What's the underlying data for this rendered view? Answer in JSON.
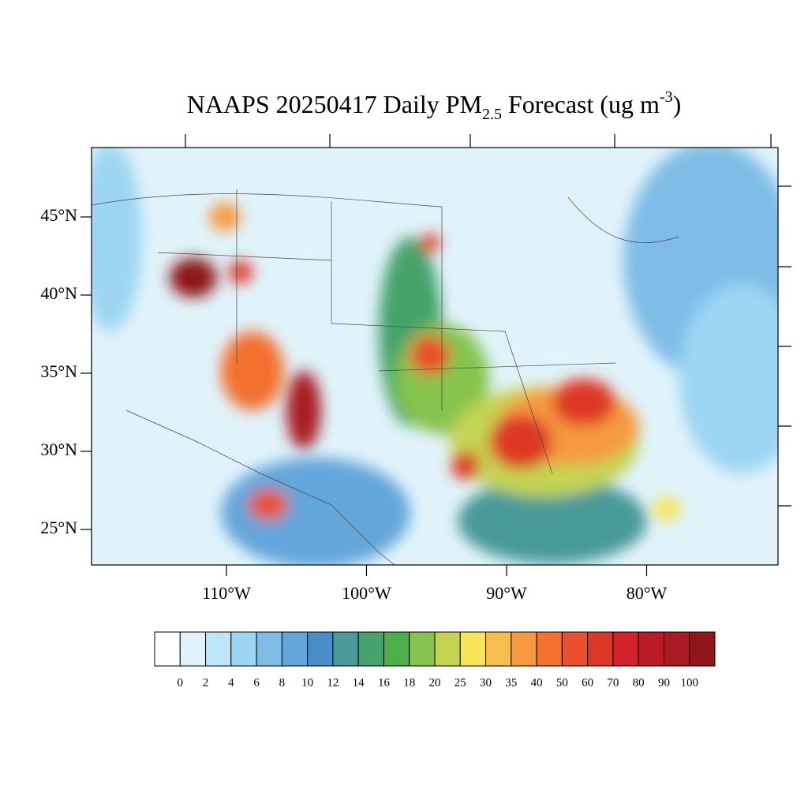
{
  "title": {
    "main": "NAAPS 20250417 Daily PM",
    "sub": "2.5",
    "after": " Forecast (ug m",
    "sup": "-3",
    "end": ")"
  },
  "map": {
    "xlim": [
      -119.63,
      -70.62
    ],
    "ylim": [
      22.73,
      49.44
    ],
    "xticks": [
      {
        "value": -110,
        "label": "110°W"
      },
      {
        "value": -100,
        "label": "100°W"
      },
      {
        "value": -90,
        "label": "90°W"
      },
      {
        "value": -80,
        "label": "80°W"
      }
    ],
    "yticks": [
      {
        "value": 45,
        "label": "45°N"
      },
      {
        "value": 40,
        "label": "40°N"
      },
      {
        "value": 35,
        "label": "35°N"
      },
      {
        "value": 30,
        "label": "30°N"
      },
      {
        "value": 25,
        "label": "25°N"
      }
    ]
  },
  "colorbar": {
    "levels": [
      0,
      2,
      4,
      6,
      8,
      10,
      12,
      14,
      16,
      18,
      20,
      25,
      30,
      35,
      40,
      50,
      60,
      70,
      80,
      90,
      100
    ],
    "colors": [
      "#ffffff",
      "#e0f3fb",
      "#bfe6f7",
      "#9dd6f2",
      "#7fbde6",
      "#64a6da",
      "#4a8cc8",
      "#4a9a9a",
      "#45a36b",
      "#4cb04a",
      "#86c44d",
      "#c3d452",
      "#f7e658",
      "#f7be4f",
      "#f69a3f",
      "#f3702f",
      "#e9502b",
      "#dd3827",
      "#d42129",
      "#bc1c26",
      "#a91b22",
      "#8f1719"
    ]
  }
}
